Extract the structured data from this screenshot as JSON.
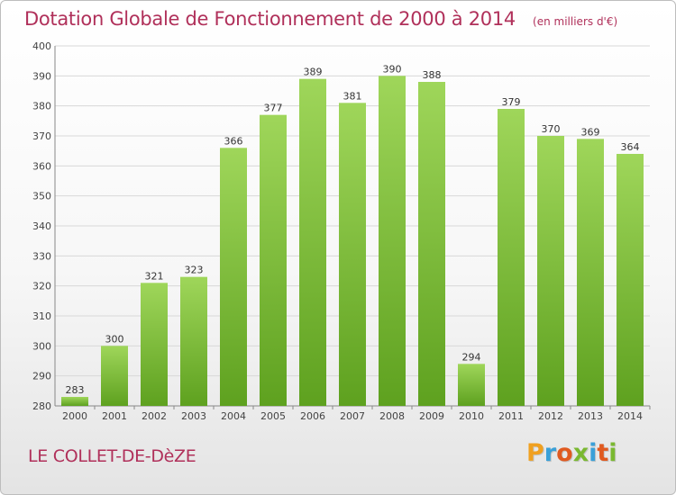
{
  "header": {
    "title": "Dotation Globale de Fonctionnement de 2000 à 2014",
    "unit": "(en milliers d'€)"
  },
  "footer": {
    "commune": "LE COLLET-DE-DèZE",
    "brand": "Proxiti",
    "brand_colors": [
      "#f0a020",
      "#3aa0d8",
      "#e05a20",
      "#7ab830",
      "#3aa0d8",
      "#e05a20",
      "#7ab830"
    ]
  },
  "colors": {
    "title": "#b0305a",
    "bar_light": "#9fd65a",
    "bar_dark": "#5ea11f",
    "grid": "#d8d8d8"
  },
  "chart_data": {
    "type": "bar",
    "title": "Dotation Globale de Fonctionnement de 2000 à 2014",
    "subtitle": "(en milliers d'€)",
    "categories": [
      "2000",
      "2001",
      "2002",
      "2003",
      "2004",
      "2005",
      "2006",
      "2007",
      "2008",
      "2009",
      "2010",
      "2011",
      "2012",
      "2013",
      "2014"
    ],
    "values": [
      283,
      300,
      321,
      323,
      366,
      377,
      389,
      381,
      390,
      388,
      294,
      379,
      370,
      369,
      364
    ],
    "ylim": [
      280,
      400
    ],
    "yticks": [
      280,
      290,
      300,
      310,
      320,
      330,
      340,
      350,
      360,
      370,
      380,
      390,
      400
    ],
    "grid": true,
    "legend": "none"
  }
}
